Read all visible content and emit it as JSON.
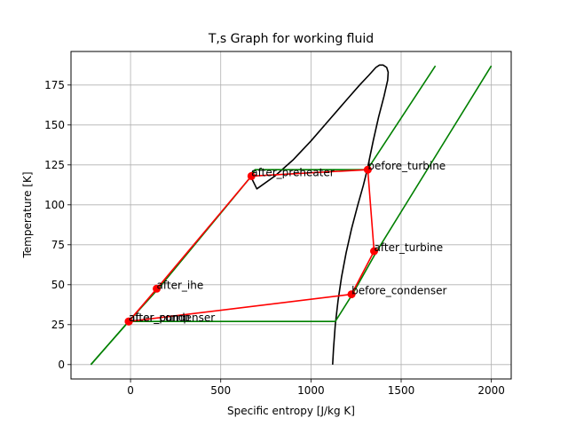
{
  "chart_data": {
    "type": "line",
    "title": "T,s Graph for working fluid",
    "xlabel": "Specific entropy [J/kg K]",
    "ylabel": "Temperature [K]",
    "xlim": [
      -330,
      2110
    ],
    "ylim": [
      -9,
      196
    ],
    "xticks": [
      0,
      500,
      1000,
      1500,
      2000
    ],
    "yticks": [
      0,
      25,
      50,
      75,
      100,
      125,
      150,
      175
    ],
    "grid": true,
    "colors": {
      "dome": "#000000",
      "isobar": "#008000",
      "cycle": "#ff0000"
    },
    "saturation_dome": [
      [
        1120,
        0
      ],
      [
        1125,
        10
      ],
      [
        1135,
        25
      ],
      [
        1150,
        40
      ],
      [
        1170,
        55
      ],
      [
        1195,
        70
      ],
      [
        1225,
        85
      ],
      [
        1260,
        100
      ],
      [
        1290,
        112
      ],
      [
        1312,
        122
      ],
      [
        1345,
        140
      ],
      [
        1375,
        155
      ],
      [
        1405,
        168
      ],
      [
        1425,
        178
      ],
      [
        1428,
        183
      ],
      [
        1420,
        186
      ],
      [
        1400,
        187.5
      ],
      [
        1380,
        187.5
      ],
      [
        1360,
        186
      ],
      [
        1320,
        181
      ],
      [
        1270,
        175
      ],
      [
        1200,
        166
      ],
      [
        1100,
        153
      ],
      [
        1000,
        140
      ],
      [
        900,
        128
      ],
      [
        800,
        118
      ],
      [
        700,
        110
      ],
      [
        665,
        118
      ],
      [
        680,
        121.5
      ]
    ],
    "isobars": [
      {
        "points": [
          [
            -220,
            0
          ],
          [
            -10,
            27
          ],
          [
            1135,
            27
          ],
          [
            1230,
            44
          ],
          [
            1360,
            70
          ],
          [
            2000,
            187
          ]
        ]
      },
      {
        "points": [
          [
            -220,
            0
          ],
          [
            -10,
            27
          ],
          [
            150,
            47
          ],
          [
            670,
            118
          ],
          [
            690,
            122
          ],
          [
            1312,
            122
          ],
          [
            1690,
            187
          ]
        ]
      }
    ],
    "cycle_points": [
      {
        "label": "after_pump",
        "x": -10,
        "y": 27
      },
      {
        "label": "after_ihe",
        "x": 145,
        "y": 47.5
      },
      {
        "label": "after_preheater",
        "x": 670,
        "y": 118
      },
      {
        "label": "before_turbine",
        "x": 1315,
        "y": 122
      },
      {
        "label": "after_turbine",
        "x": 1350,
        "y": 71
      },
      {
        "label": "before_condenser",
        "x": 1225,
        "y": 44
      },
      {
        "label": "after_condenser",
        "x": -10,
        "y": 27
      }
    ],
    "cycle_order": [
      "after_pump",
      "after_ihe",
      "after_preheater",
      "before_turbine",
      "after_turbine",
      "before_condenser",
      "after_condenser"
    ]
  }
}
